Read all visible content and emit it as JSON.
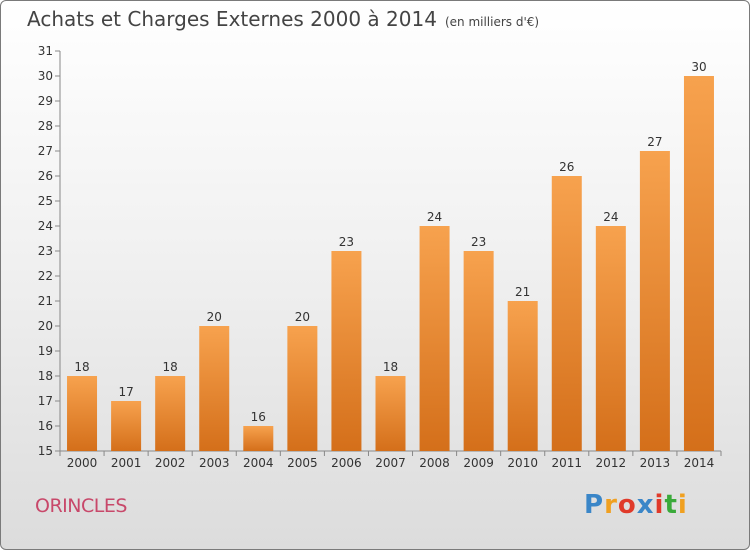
{
  "header": {
    "title": "Achats et Charges Externes 2000 à 2014",
    "unit": "(en milliers d'€)"
  },
  "footer": {
    "commune": "ORINCLES",
    "logo": {
      "letters": [
        "P",
        "r",
        "o",
        "x",
        "i",
        "t",
        "i"
      ],
      "colors": [
        "#3a86c8",
        "#f0a020",
        "#e03a2a",
        "#3a86c8",
        "#e03a2a",
        "#3aaa3a",
        "#f0a020"
      ]
    }
  },
  "chart_data": {
    "type": "bar",
    "categories": [
      "2000",
      "2001",
      "2002",
      "2003",
      "2004",
      "2005",
      "2006",
      "2007",
      "2008",
      "2009",
      "2010",
      "2011",
      "2012",
      "2013",
      "2014"
    ],
    "values": [
      18,
      17,
      18,
      20,
      16,
      20,
      23,
      18,
      24,
      23,
      21,
      26,
      24,
      27,
      30
    ],
    "data_labels": [
      "18",
      "17",
      "18",
      "20",
      "16",
      "20",
      "23",
      "18",
      "24",
      "23",
      "21",
      "26",
      "24",
      "27",
      "30"
    ],
    "yticks": [
      "15",
      "16",
      "17",
      "18",
      "19",
      "20",
      "21",
      "22",
      "23",
      "24",
      "25",
      "26",
      "27",
      "28",
      "29",
      "30",
      "31"
    ],
    "ylim": [
      15,
      31
    ],
    "grid": false,
    "bar_color_top": "#f7a24e",
    "bar_color_bottom": "#d46f1a"
  }
}
